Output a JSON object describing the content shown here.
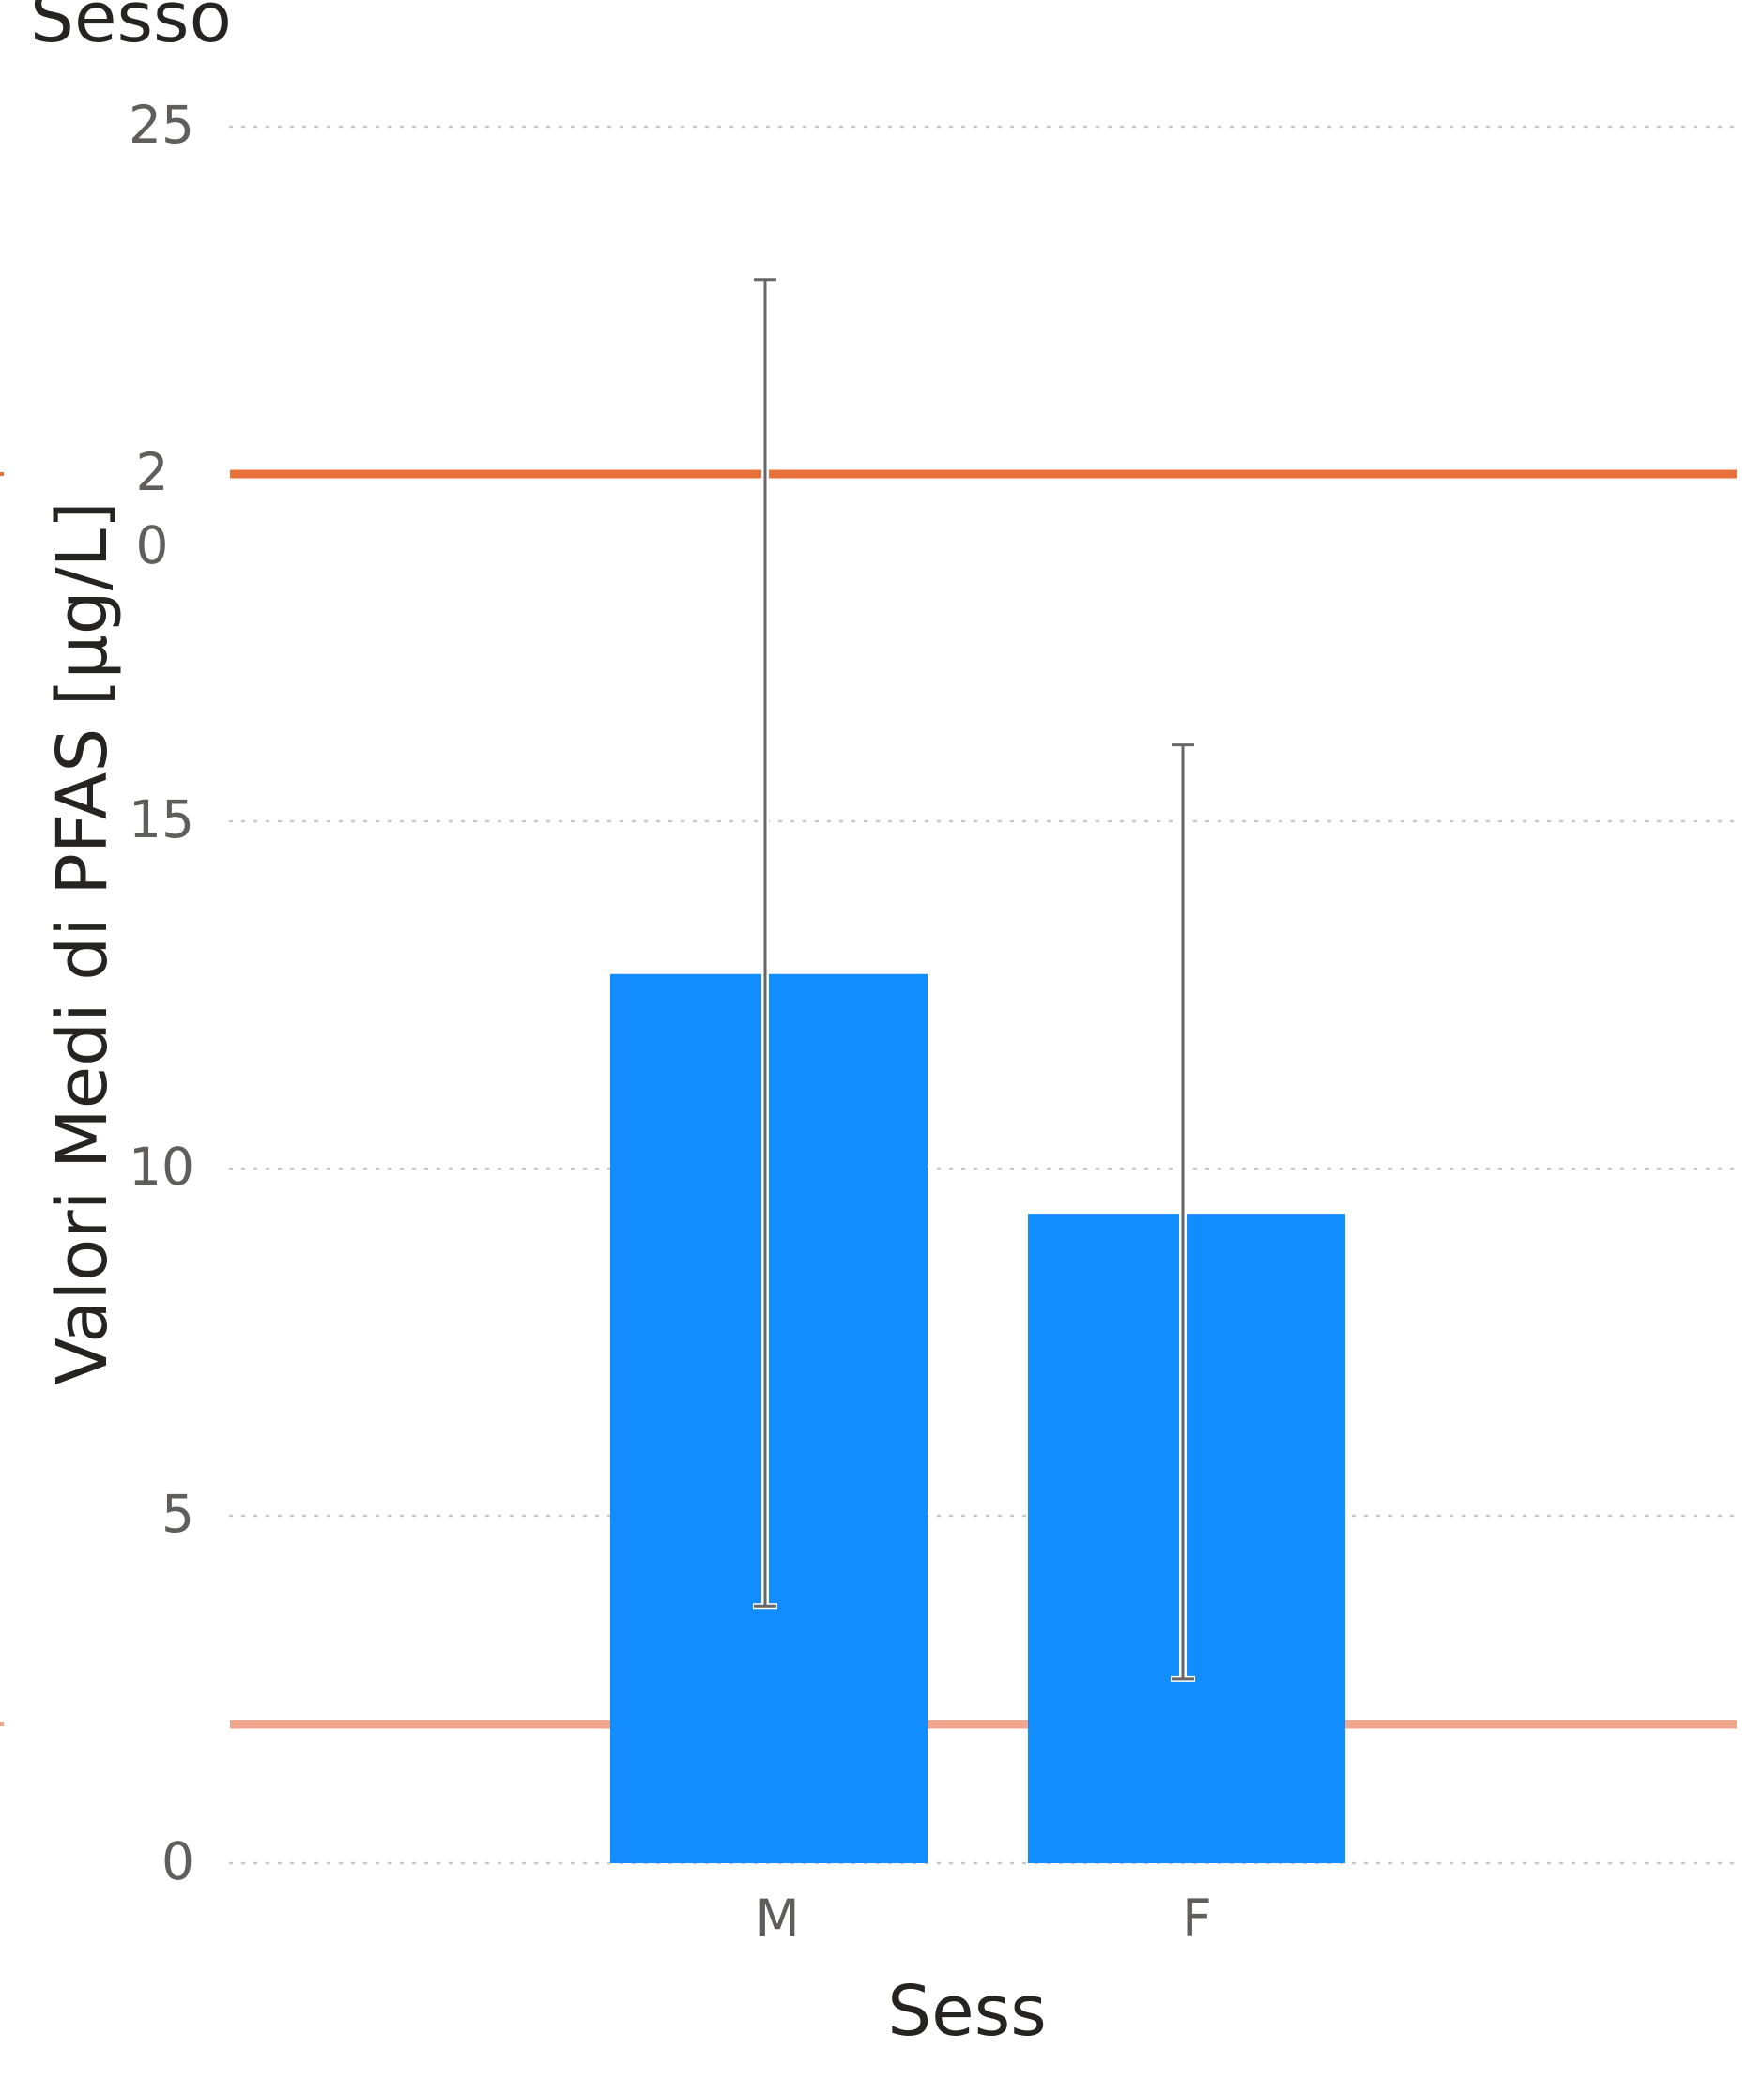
{
  "chart_data": {
    "type": "bar",
    "title": "Sesso",
    "xlabel": "Sess",
    "ylabel": "Valori Medi di PFAS [µg/L]",
    "categories": [
      "M",
      "F"
    ],
    "values": [
      12.8,
      9.35
    ],
    "error_low": [
      3.7,
      2.65
    ],
    "error_high": [
      22.8,
      16.1
    ],
    "ylim": [
      0,
      25
    ],
    "yticks": [
      0,
      5,
      10,
      15,
      20,
      25
    ],
    "ytick_labels": [
      "0",
      "5",
      "10",
      "15",
      "2\n0",
      "25"
    ],
    "grid": true,
    "reference_lines": [
      {
        "value": 20,
        "color": "#E8703A"
      },
      {
        "value": 2,
        "color": "#EFA68C"
      }
    ],
    "colors": {
      "bar": "#118DFF",
      "error_bar": "#666666",
      "grid": "#C8C8C8",
      "tick_text": "#605E5C",
      "title_text": "#252423"
    }
  }
}
